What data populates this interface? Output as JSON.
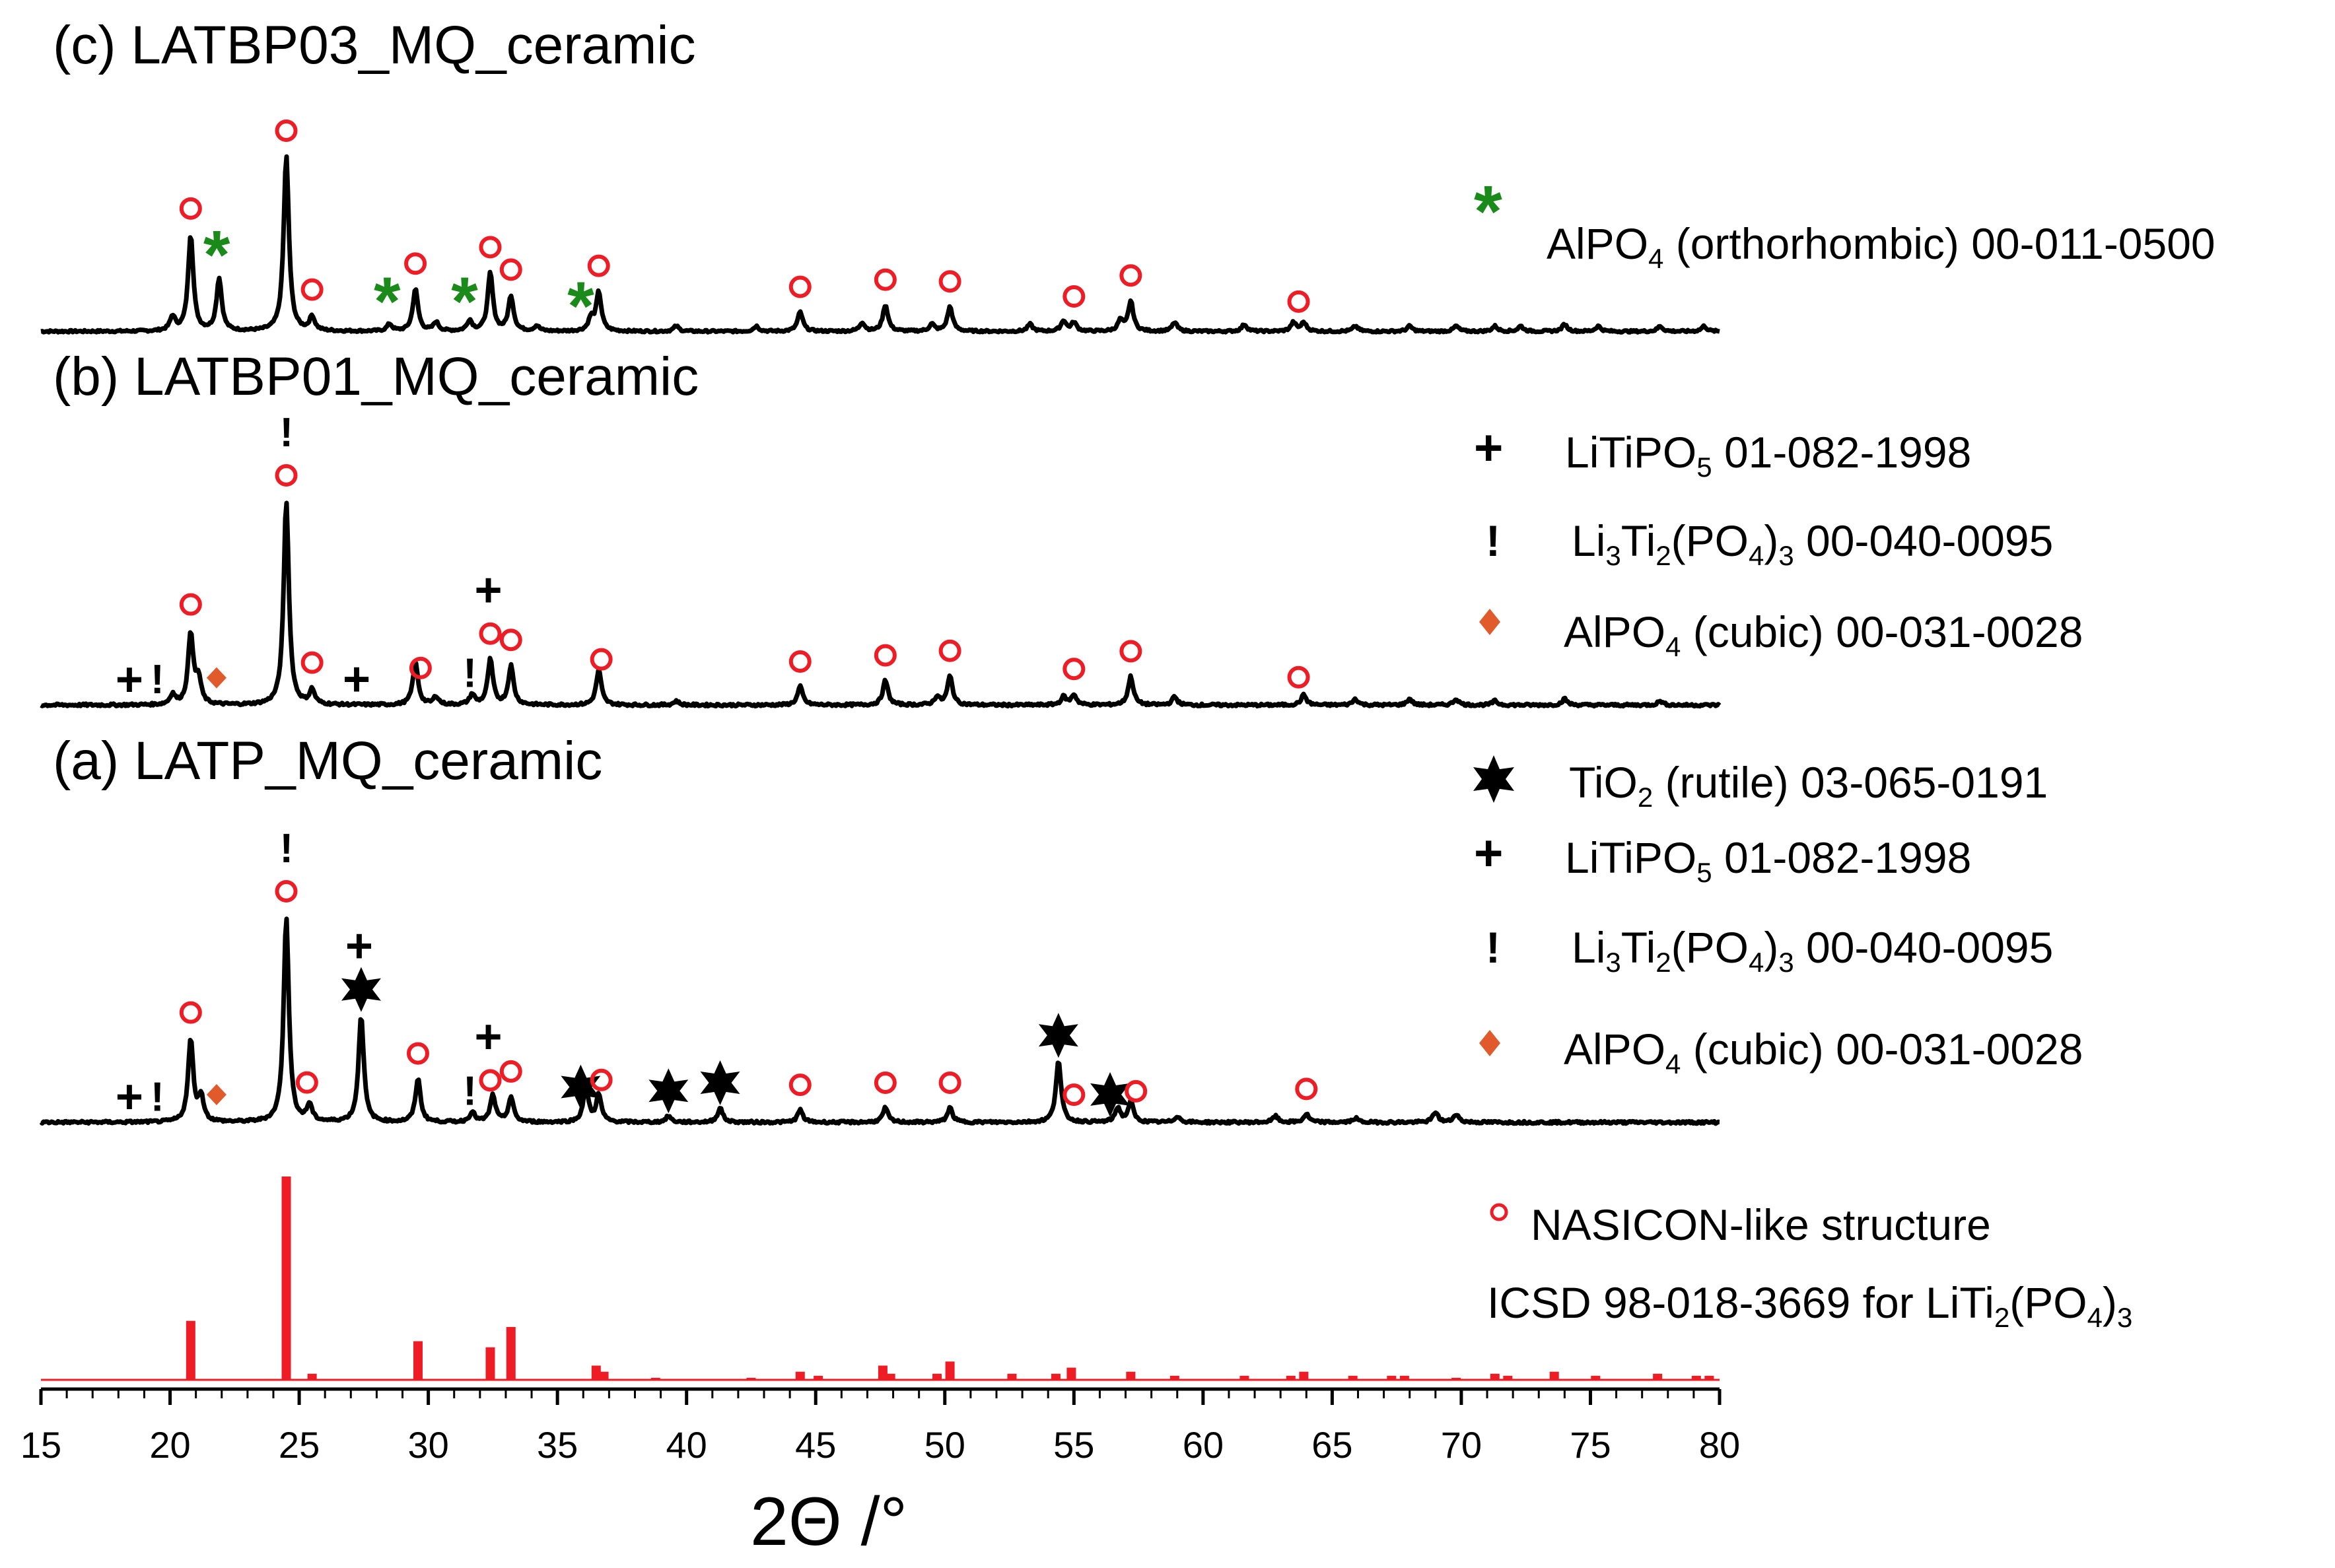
{
  "chart_data": {
    "type": "xrd_patterns",
    "xlabel": "2Θ /°",
    "xlim": [
      15,
      80
    ],
    "xticks": [
      15,
      20,
      25,
      30,
      35,
      40,
      45,
      50,
      55,
      60,
      65,
      70,
      75,
      80
    ],
    "colors": {
      "pattern": "#000000",
      "nasicon": "#ee1c25",
      "alpo4_ortho": "#1a8a1a",
      "alpo4_cubic": "#e05a2b",
      "reference": "#ee1c25"
    },
    "patterns": [
      {
        "id": "c",
        "title": "(c) LATBP03_MQ_ceramic",
        "peaks": [
          [
            20.1,
            0.08
          ],
          [
            20.8,
            0.55
          ],
          [
            21.9,
            0.3
          ],
          [
            24.5,
            1.0
          ],
          [
            25.5,
            0.08
          ],
          [
            28.5,
            0.04
          ],
          [
            29.5,
            0.24
          ],
          [
            30.3,
            0.05
          ],
          [
            31.6,
            0.06
          ],
          [
            32.4,
            0.33
          ],
          [
            33.2,
            0.2
          ],
          [
            34.2,
            0.03
          ],
          [
            36.3,
            0.07
          ],
          [
            36.6,
            0.22
          ],
          [
            39.6,
            0.03
          ],
          [
            42.7,
            0.03
          ],
          [
            44.4,
            0.11
          ],
          [
            46.8,
            0.05
          ],
          [
            47.7,
            0.15
          ],
          [
            49.5,
            0.04
          ],
          [
            50.2,
            0.14
          ],
          [
            53.3,
            0.04
          ],
          [
            54.6,
            0.06
          ],
          [
            55.0,
            0.05
          ],
          [
            56.8,
            0.06
          ],
          [
            57.2,
            0.17
          ],
          [
            58.9,
            0.05
          ],
          [
            61.6,
            0.04
          ],
          [
            63.5,
            0.05
          ],
          [
            63.9,
            0.05
          ],
          [
            65.9,
            0.03
          ],
          [
            68.0,
            0.03
          ],
          [
            69.8,
            0.03
          ],
          [
            71.3,
            0.03
          ],
          [
            72.3,
            0.03
          ],
          [
            74.0,
            0.04
          ],
          [
            75.3,
            0.03
          ],
          [
            77.7,
            0.03
          ],
          [
            79.4,
            0.03
          ]
        ],
        "markers": [
          {
            "x": 20.8,
            "type": "nasicon"
          },
          {
            "x": 21.9,
            "type": "alpo4_ortho"
          },
          {
            "x": 24.5,
            "type": "nasicon"
          },
          {
            "x": 25.5,
            "type": "nasicon"
          },
          {
            "x": 28.5,
            "type": "alpo4_ortho"
          },
          {
            "x": 29.5,
            "type": "nasicon"
          },
          {
            "x": 31.5,
            "type": "alpo4_ortho"
          },
          {
            "x": 32.4,
            "type": "nasicon"
          },
          {
            "x": 33.2,
            "type": "nasicon"
          },
          {
            "x": 36.0,
            "type": "alpo4_ortho"
          },
          {
            "x": 36.6,
            "type": "nasicon"
          },
          {
            "x": 44.4,
            "type": "nasicon"
          },
          {
            "x": 47.7,
            "type": "nasicon"
          },
          {
            "x": 50.2,
            "type": "nasicon"
          },
          {
            "x": 55.0,
            "type": "nasicon"
          },
          {
            "x": 57.2,
            "type": "nasicon"
          },
          {
            "x": 63.7,
            "type": "nasicon"
          }
        ]
      },
      {
        "id": "b",
        "title": "(b) LATBP01_MQ_ceramic",
        "peaks": [
          [
            20.1,
            0.05
          ],
          [
            20.8,
            0.35
          ],
          [
            21.1,
            0.12
          ],
          [
            24.5,
            1.0
          ],
          [
            25.5,
            0.07
          ],
          [
            29.5,
            0.21
          ],
          [
            30.3,
            0.04
          ],
          [
            31.7,
            0.05
          ],
          [
            32.4,
            0.22
          ],
          [
            33.2,
            0.19
          ],
          [
            36.6,
            0.17
          ],
          [
            39.6,
            0.02
          ],
          [
            44.4,
            0.09
          ],
          [
            47.7,
            0.12
          ],
          [
            49.7,
            0.04
          ],
          [
            50.2,
            0.14
          ],
          [
            54.6,
            0.04
          ],
          [
            55.0,
            0.05
          ],
          [
            57.2,
            0.14
          ],
          [
            58.9,
            0.04
          ],
          [
            63.9,
            0.05
          ],
          [
            65.9,
            0.03
          ],
          [
            68.0,
            0.03
          ],
          [
            69.8,
            0.03
          ],
          [
            71.3,
            0.02
          ],
          [
            74.0,
            0.03
          ],
          [
            77.7,
            0.02
          ]
        ],
        "markers": [
          {
            "x": 18.5,
            "type": "plus"
          },
          {
            "x": 19.5,
            "type": "excl"
          },
          {
            "x": 20.8,
            "type": "nasicon"
          },
          {
            "x": 21.8,
            "type": "alpo4_cubic"
          },
          {
            "x": 24.5,
            "type": "nasicon"
          },
          {
            "x": 24.5,
            "type": "excl",
            "stack": 1
          },
          {
            "x": 25.5,
            "type": "nasicon"
          },
          {
            "x": 27.3,
            "type": "plus"
          },
          {
            "x": 29.7,
            "type": "nasicon"
          },
          {
            "x": 31.6,
            "type": "excl"
          },
          {
            "x": 32.4,
            "type": "nasicon"
          },
          {
            "x": 32.4,
            "type": "plus",
            "stack": 1
          },
          {
            "x": 33.2,
            "type": "nasicon"
          },
          {
            "x": 36.7,
            "type": "nasicon"
          },
          {
            "x": 44.4,
            "type": "nasicon"
          },
          {
            "x": 47.7,
            "type": "nasicon"
          },
          {
            "x": 50.2,
            "type": "nasicon"
          },
          {
            "x": 55.0,
            "type": "nasicon"
          },
          {
            "x": 57.2,
            "type": "nasicon"
          },
          {
            "x": 63.7,
            "type": "nasicon"
          }
        ]
      },
      {
        "id": "a",
        "title": "(a) LATP_MQ_ceramic",
        "peaks": [
          [
            20.8,
            0.4
          ],
          [
            21.2,
            0.12
          ],
          [
            24.5,
            1.0
          ],
          [
            25.4,
            0.08
          ],
          [
            27.4,
            0.52
          ],
          [
            29.6,
            0.21
          ],
          [
            31.7,
            0.05
          ],
          [
            32.5,
            0.13
          ],
          [
            33.2,
            0.12
          ],
          [
            36.1,
            0.17
          ],
          [
            36.6,
            0.13
          ],
          [
            39.3,
            0.03
          ],
          [
            41.3,
            0.07
          ],
          [
            44.4,
            0.06
          ],
          [
            47.7,
            0.07
          ],
          [
            50.2,
            0.07
          ],
          [
            54.4,
            0.3
          ],
          [
            56.7,
            0.07
          ],
          [
            57.2,
            0.1
          ],
          [
            59.0,
            0.03
          ],
          [
            62.8,
            0.03
          ],
          [
            64.0,
            0.04
          ],
          [
            65.9,
            0.02
          ],
          [
            69.0,
            0.05
          ],
          [
            69.8,
            0.04
          ]
        ],
        "markers": [
          {
            "x": 18.5,
            "type": "plus"
          },
          {
            "x": 19.5,
            "type": "excl"
          },
          {
            "x": 20.8,
            "type": "nasicon"
          },
          {
            "x": 21.8,
            "type": "alpo4_cubic"
          },
          {
            "x": 24.5,
            "type": "nasicon"
          },
          {
            "x": 24.5,
            "type": "excl",
            "stack": 1
          },
          {
            "x": 25.3,
            "type": "nasicon"
          },
          {
            "x": 27.4,
            "type": "star"
          },
          {
            "x": 27.4,
            "type": "plus",
            "stack": 1
          },
          {
            "x": 29.6,
            "type": "nasicon"
          },
          {
            "x": 31.6,
            "type": "excl"
          },
          {
            "x": 32.4,
            "type": "nasicon"
          },
          {
            "x": 32.4,
            "type": "plus",
            "stack": 1
          },
          {
            "x": 33.2,
            "type": "nasicon"
          },
          {
            "x": 35.9,
            "type": "star"
          },
          {
            "x": 36.7,
            "type": "nasicon"
          },
          {
            "x": 39.3,
            "type": "star"
          },
          {
            "x": 41.3,
            "type": "star"
          },
          {
            "x": 44.4,
            "type": "nasicon"
          },
          {
            "x": 47.7,
            "type": "nasicon"
          },
          {
            "x": 50.2,
            "type": "nasicon"
          },
          {
            "x": 54.4,
            "type": "star"
          },
          {
            "x": 55.0,
            "type": "nasicon"
          },
          {
            "x": 56.4,
            "type": "star"
          },
          {
            "x": 57.4,
            "type": "nasicon"
          },
          {
            "x": 64.0,
            "type": "nasicon"
          }
        ]
      }
    ],
    "reference": {
      "label": "ICSD 98-018-3669 for LiTi2(PO4)3",
      "bars": [
        [
          20.8,
          0.29
        ],
        [
          24.5,
          1.0
        ],
        [
          25.5,
          0.03
        ],
        [
          29.6,
          0.19
        ],
        [
          32.4,
          0.16
        ],
        [
          33.2,
          0.26
        ],
        [
          36.5,
          0.07
        ],
        [
          36.8,
          0.04
        ],
        [
          38.8,
          0.01
        ],
        [
          42.5,
          0.01
        ],
        [
          44.4,
          0.04
        ],
        [
          45.1,
          0.02
        ],
        [
          47.6,
          0.07
        ],
        [
          47.9,
          0.03
        ],
        [
          49.7,
          0.03
        ],
        [
          50.2,
          0.09
        ],
        [
          52.6,
          0.03
        ],
        [
          54.3,
          0.03
        ],
        [
          54.9,
          0.06
        ],
        [
          57.2,
          0.04
        ],
        [
          58.9,
          0.02
        ],
        [
          61.6,
          0.02
        ],
        [
          63.4,
          0.02
        ],
        [
          63.9,
          0.04
        ],
        [
          65.8,
          0.02
        ],
        [
          67.3,
          0.02
        ],
        [
          67.8,
          0.02
        ],
        [
          69.8,
          0.01
        ],
        [
          71.3,
          0.03
        ],
        [
          71.8,
          0.02
        ],
        [
          73.6,
          0.04
        ],
        [
          75.2,
          0.02
        ],
        [
          77.6,
          0.03
        ],
        [
          79.1,
          0.02
        ],
        [
          79.6,
          0.02
        ]
      ]
    },
    "legend": {
      "nasicon": "NASICON-like structure",
      "reference_pre": "ICSD 98-018-3669 for LiTi",
      "reference_sub1": "2",
      "reference_mid": "(PO",
      "reference_sub2": "4",
      "reference_post": ")",
      "reference_sub3": "3",
      "alpo4_ortho_pre": "AlPO",
      "alpo4_ortho_sub": "4",
      "alpo4_ortho_post": " (orthorhombic) 00-011-0500",
      "litipo5_pre": "LiTiPO",
      "litipo5_sub": "5",
      "litipo5_post": " 01-082-1998",
      "li3ti2_pre": "Li",
      "li3ti2_sub1": "3",
      "li3ti2_mid": "Ti",
      "li3ti2_sub2": "2",
      "li3ti2_mid2": "(PO",
      "li3ti2_sub3": "4",
      "li3ti2_mid3": ")",
      "li3ti2_sub4": "3",
      "li3ti2_post": " 00-040-0095",
      "alpo4_cubic_pre": "AlPO",
      "alpo4_cubic_sub": "4",
      "alpo4_cubic_post": " (cubic) 00-031-0028",
      "tio2_pre": "TiO",
      "tio2_sub": "2",
      "tio2_post": " (rutile) 03-065-0191"
    },
    "symbols": {
      "plus": "+",
      "excl": "!",
      "star": "✶",
      "asterisk": "*"
    }
  }
}
